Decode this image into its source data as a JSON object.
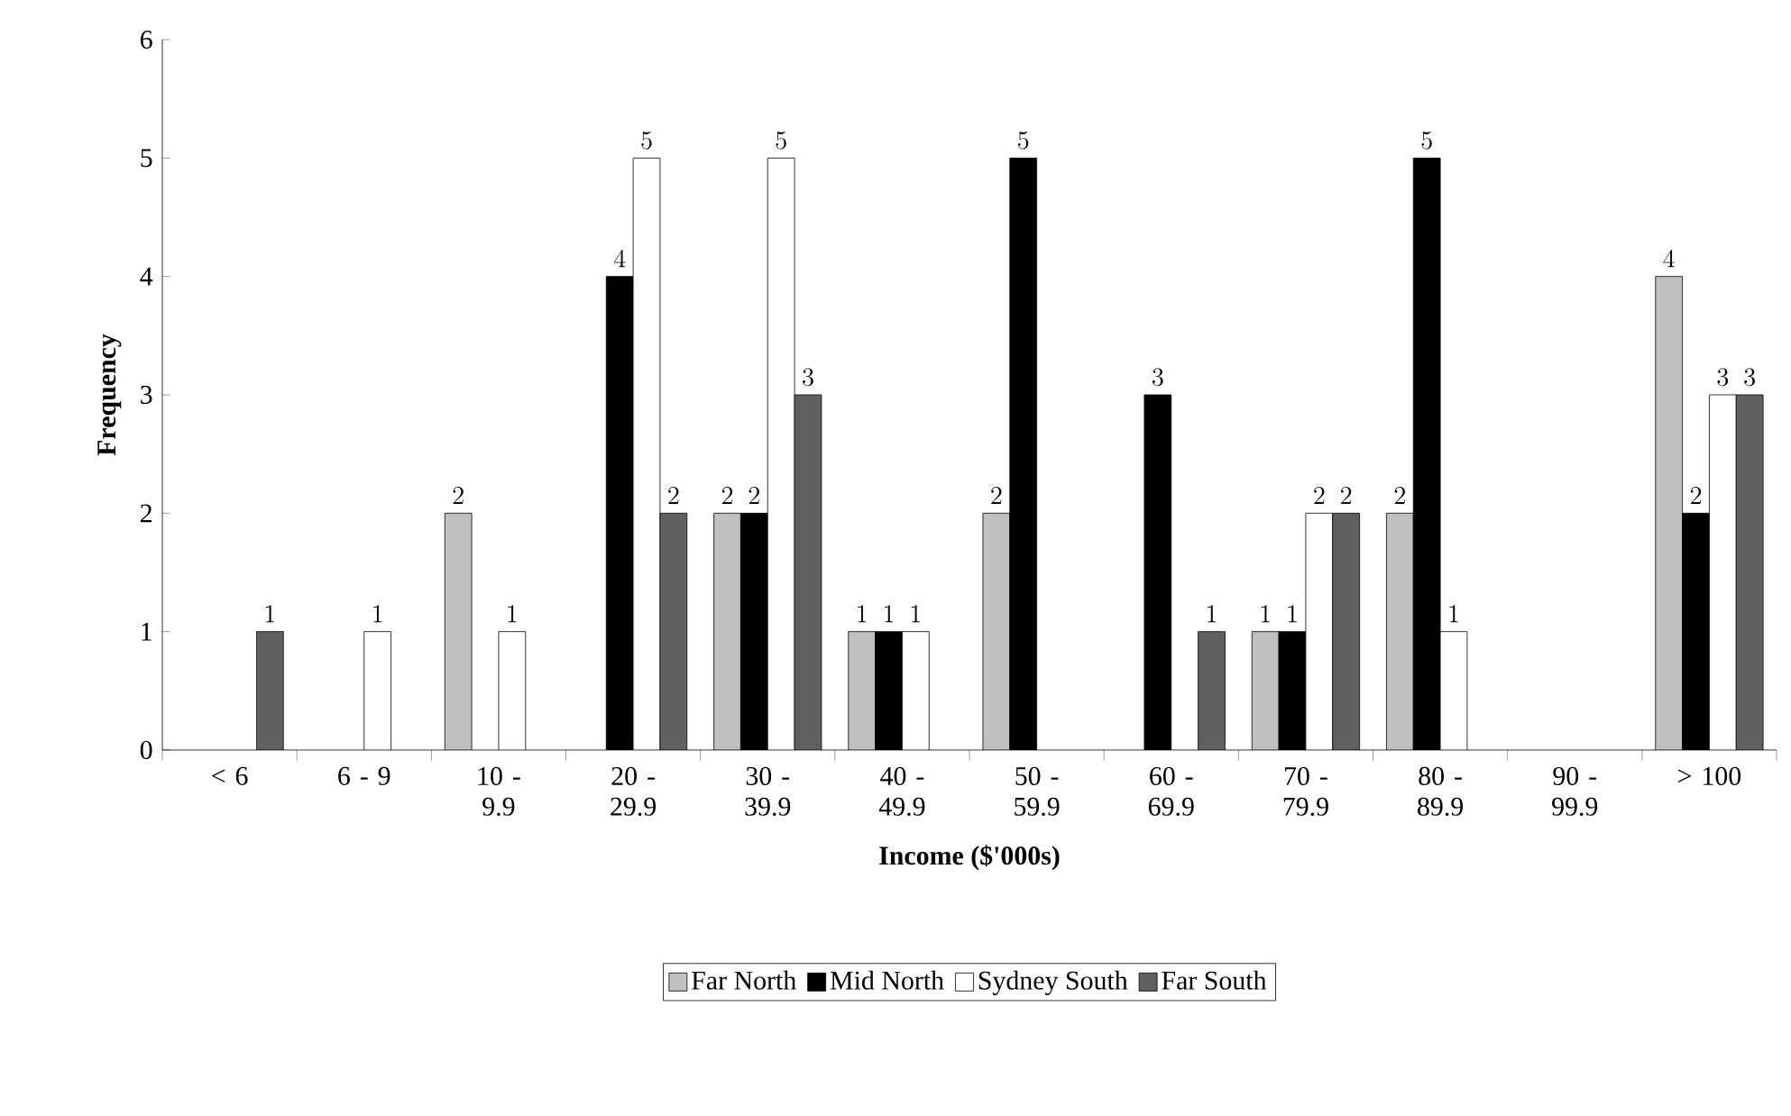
{
  "chart_data": {
    "type": "bar",
    "xlabel": "Income ($'000s)",
    "ylabel": "Frequency",
    "categories": [
      "< 6",
      "6 - 9",
      "10 - 9.9",
      "20 - 29.9",
      "30 - 39.9",
      "40 - 49.9",
      "50 - 59.9",
      "60 - 69.9",
      "70 - 79.9",
      "80 - 89.9",
      "90 - 99.9",
      "> 100"
    ],
    "series": [
      {
        "name": "Far North",
        "color": "#c0c0c0",
        "values": [
          null,
          null,
          2,
          null,
          2,
          1,
          2,
          null,
          1,
          2,
          null,
          4
        ]
      },
      {
        "name": "Mid North",
        "color": "#000000",
        "values": [
          null,
          null,
          null,
          4,
          2,
          1,
          5,
          3,
          1,
          5,
          null,
          2
        ]
      },
      {
        "name": "Sydney South",
        "color": "#ffffff",
        "values": [
          null,
          1,
          1,
          5,
          5,
          1,
          null,
          null,
          2,
          1,
          null,
          3
        ]
      },
      {
        "name": "Far South",
        "color": "#606060",
        "values": [
          1,
          null,
          null,
          2,
          3,
          null,
          null,
          1,
          2,
          null,
          null,
          3
        ]
      }
    ],
    "ylim": [
      0,
      6
    ],
    "yticks": [
      0,
      1,
      2,
      3,
      4,
      5,
      6
    ],
    "grid": false,
    "legend": "bottom",
    "data_labels": true
  }
}
